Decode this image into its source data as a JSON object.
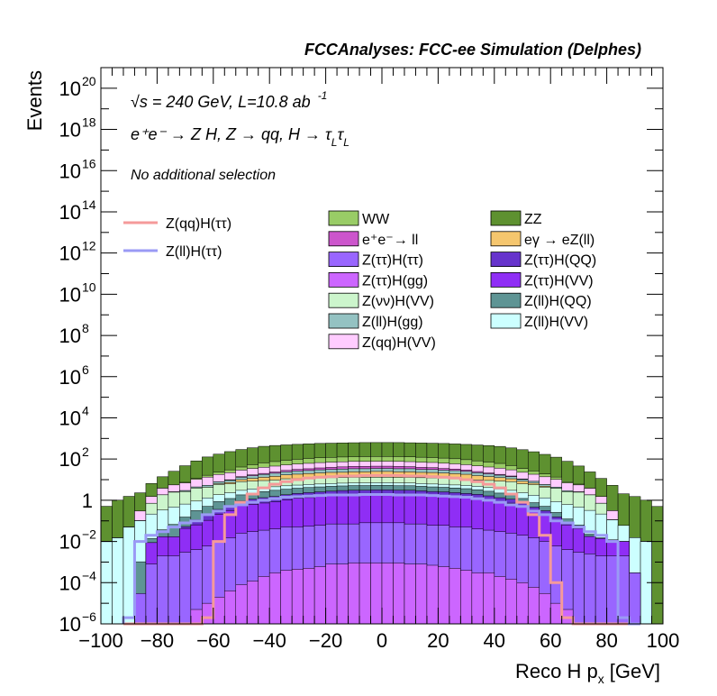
{
  "chart_data": {
    "type": "histogram",
    "title": "FCCAnalyses: FCC-ee Simulation (Delphes)",
    "xlabel": "Reco H p_x [GeV]",
    "xlabel_main": "Reco H p",
    "xlabel_sub": "x",
    "xlabel_unit": "[GeV]",
    "ylabel": "Events",
    "ylog": true,
    "xlim": [
      -100,
      100
    ],
    "ylim": [
      1e-06,
      1e+21
    ],
    "x_ticks": [
      "−100",
      "−80",
      "−60",
      "−40",
      "−20",
      "0",
      "20",
      "40",
      "60",
      "80",
      "100"
    ],
    "y_ticks": [
      {
        "exp": -6,
        "label": "10",
        "sup": "−6"
      },
      {
        "exp": -4,
        "label": "10",
        "sup": "−4"
      },
      {
        "exp": -2,
        "label": "10",
        "sup": "−2"
      },
      {
        "exp": 0,
        "label": "1",
        "sup": ""
      },
      {
        "exp": 2,
        "label": "10",
        "sup": "2"
      },
      {
        "exp": 4,
        "label": "10",
        "sup": "4"
      },
      {
        "exp": 6,
        "label": "10",
        "sup": "6"
      },
      {
        "exp": 8,
        "label": "10",
        "sup": "8"
      },
      {
        "exp": 10,
        "label": "10",
        "sup": "10"
      },
      {
        "exp": 12,
        "label": "10",
        "sup": "12"
      },
      {
        "exp": 14,
        "label": "10",
        "sup": "14"
      },
      {
        "exp": 16,
        "label": "10",
        "sup": "16"
      },
      {
        "exp": 18,
        "label": "10",
        "sup": "18"
      },
      {
        "exp": 20,
        "label": "10",
        "sup": "20"
      }
    ],
    "annotations": {
      "energy": "√s = 240 GeV, L=10.8 ab",
      "energy_sup": "-1",
      "process": "e⁺e⁻ → Z H, Z → qq, H → τ",
      "process_tau2": "τ",
      "process_sub": "L",
      "selection": "No additional selection"
    },
    "signal_legend": [
      {
        "name": "Z(qq)H(ττ)",
        "color": "#f59a9a"
      },
      {
        "name": "Z(ll)H(ττ)",
        "color": "#9a9af5"
      }
    ],
    "legend": [
      {
        "name": "WW",
        "color": "#99cc66"
      },
      {
        "name": "ZZ",
        "color": "#5e9130"
      },
      {
        "name": "e⁺e⁻→ ll",
        "color": "#cc55cc"
      },
      {
        "name": "eγ → eZ(ll)",
        "color": "#f5c66e"
      },
      {
        "name": "Z(ττ)H(ττ)",
        "color": "#9966ff"
      },
      {
        "name": "Z(ττ)H(QQ)",
        "color": "#6633cc"
      },
      {
        "name": "Z(ττ)H(gg)",
        "color": "#cc66ff"
      },
      {
        "name": "Z(ττ)H(VV)",
        "color": "#8f2ef5"
      },
      {
        "name": "Z(νν)H(VV)",
        "color": "#ccf5cc"
      },
      {
        "name": "Z(ll)H(QQ)",
        "color": "#5e9494"
      },
      {
        "name": "Z(ll)H(gg)",
        "color": "#94c2c2"
      },
      {
        "name": "Z(ll)H(VV)",
        "color": "#ccffff"
      },
      {
        "name": "Z(qq)H(VV)",
        "color": "#ffccff"
      }
    ],
    "stack_bins_x_lo": [
      -100,
      -96,
      -92,
      -88,
      -84,
      -80,
      -76,
      -72,
      -68,
      -64,
      -60,
      -56,
      -52,
      -48,
      -44,
      -40,
      -36,
      -32,
      -28,
      -24,
      -20,
      -16,
      -12,
      -8,
      -4,
      0,
      4,
      8,
      12,
      16,
      20,
      24,
      28,
      32,
      36,
      40,
      44,
      48,
      52,
      56,
      60,
      64,
      68,
      72,
      76,
      80,
      84,
      88,
      92,
      96
    ],
    "stack_bin_width": 4,
    "stack_series": [
      {
        "name": "Z(ττ)H(gg)",
        "color": "#cc66ff",
        "values": [
          0,
          0,
          0,
          0,
          0,
          0,
          0,
          0,
          5e-06,
          1e-05,
          2e-05,
          4e-05,
          8e-05,
          0.00012,
          0.0002,
          0.0003,
          0.0004,
          0.00045,
          0.0005,
          0.0006,
          0.0008,
          0.0008,
          0.0009,
          0.0009,
          0.0009,
          0.0009,
          0.0009,
          0.0008,
          0.0008,
          0.0007,
          0.0006,
          0.0005,
          0.0004,
          0.0003,
          0.0003,
          0.0002,
          0.00015,
          0.0001,
          6e-05,
          3e-05,
          1e-05,
          5e-06,
          0,
          0,
          0,
          0,
          0,
          0,
          0,
          0
        ]
      },
      {
        "name": "Z(ττ)H(ττ)",
        "color": "#9966ff",
        "values": [
          0,
          0,
          0,
          3e-05,
          0.0008,
          0.002,
          0.002,
          0.003,
          0.004,
          0.006,
          0.01,
          0.015,
          0.025,
          0.03,
          0.035,
          0.04,
          0.05,
          0.05,
          0.055,
          0.06,
          0.07,
          0.07,
          0.07,
          0.08,
          0.08,
          0.08,
          0.08,
          0.07,
          0.07,
          0.06,
          0.06,
          0.05,
          0.05,
          0.04,
          0.035,
          0.03,
          0.025,
          0.02,
          0.015,
          0.01,
          0.006,
          0.004,
          0.003,
          0.0025,
          0.002,
          0.002,
          0.002,
          0.0003,
          0,
          0
        ]
      },
      {
        "name": "Z(ττ)H(VV)",
        "color": "#8f2ef5",
        "values": [
          0,
          0,
          0,
          0,
          0.008,
          0.015,
          0.015,
          0.04,
          0.06,
          0.1,
          0.2,
          0.3,
          0.5,
          0.6,
          0.7,
          0.8,
          1.0,
          1.2,
          1.3,
          1.5,
          1.6,
          1.7,
          1.8,
          1.8,
          1.9,
          1.9,
          1.8,
          1.8,
          1.7,
          1.6,
          1.5,
          1.4,
          1.3,
          1.2,
          1.0,
          0.8,
          0.7,
          0.5,
          0.3,
          0.2,
          0.1,
          0.06,
          0.04,
          0.015,
          0.012,
          0.01,
          0.008,
          0,
          0,
          0
        ]
      },
      {
        "name": "Z(ττ)H(QQ)",
        "color": "#6633cc",
        "values": [
          0,
          0,
          0,
          0,
          0,
          0,
          0,
          0.01,
          0.05,
          0.1,
          0.15,
          0.2,
          0.4,
          0.5,
          0.6,
          0.7,
          0.8,
          0.9,
          1.0,
          1.0,
          1.1,
          1.2,
          1.2,
          1.2,
          1.2,
          1.2,
          1.2,
          1.2,
          1.1,
          1.0,
          1.0,
          0.9,
          0.8,
          0.7,
          0.6,
          0.5,
          0.4,
          0.2,
          0.15,
          0.1,
          0.05,
          0.01,
          0,
          0,
          0,
          0,
          0,
          0,
          0,
          0
        ]
      },
      {
        "name": "Z(ll)H(QQ)",
        "color": "#5e9494",
        "values": [
          0,
          0,
          0,
          0.001,
          0.005,
          0.02,
          0.05,
          0.1,
          0.2,
          0.3,
          0.5,
          0.7,
          0.9,
          1.1,
          1.3,
          1.5,
          1.6,
          1.7,
          1.8,
          1.9,
          2.0,
          2.0,
          2.1,
          2.1,
          2.1,
          2.1,
          2.0,
          2.0,
          1.9,
          1.8,
          1.7,
          1.6,
          1.5,
          1.3,
          1.1,
          0.9,
          0.7,
          0.5,
          0.3,
          0.2,
          0.1,
          0.05,
          0.02,
          0.005,
          0.001,
          0,
          0,
          0,
          0,
          0
        ]
      },
      {
        "name": "Z(ll)H(VV)",
        "color": "#ccffff",
        "values": [
          0.01,
          0.015,
          0.05,
          0.1,
          0.2,
          0.3,
          0.4,
          0.5,
          0.6,
          0.8,
          1.0,
          1.1,
          1.2,
          1.3,
          1.4,
          1.5,
          1.6,
          1.6,
          1.7,
          1.7,
          1.7,
          1.8,
          1.8,
          1.8,
          1.8,
          1.8,
          1.8,
          1.8,
          1.7,
          1.7,
          1.7,
          1.6,
          1.6,
          1.5,
          1.4,
          1.3,
          1.2,
          1.1,
          1.0,
          0.8,
          0.6,
          0.5,
          0.4,
          0.3,
          0.2,
          0.1,
          0.05,
          0.015,
          0.01,
          0
        ]
      },
      {
        "name": "Z(νν)H(VV)",
        "color": "#ccf5cc",
        "values": [
          0,
          0,
          0,
          0,
          0.5,
          1.5,
          2,
          2,
          3,
          3,
          4,
          4,
          5,
          5,
          5,
          5,
          6,
          6,
          6,
          6,
          6,
          6,
          6,
          6,
          6,
          6,
          6,
          6,
          6,
          6,
          6,
          6,
          6,
          5,
          5,
          5,
          5,
          4,
          4,
          3,
          3,
          2,
          2,
          1.5,
          0.5,
          0,
          0,
          0,
          0,
          0
        ]
      },
      {
        "name": "eγ → eZ(ll)",
        "color": "#f5c66e",
        "values": [
          0,
          0,
          0,
          0,
          0,
          0,
          0,
          0,
          0,
          0,
          0.5,
          1,
          2,
          3,
          4,
          5,
          6,
          7,
          8,
          9,
          10,
          10,
          11,
          11,
          12,
          12,
          11,
          11,
          10,
          10,
          9,
          8,
          7,
          6,
          5,
          4,
          3,
          2,
          1,
          0.5,
          0,
          0,
          0,
          0,
          0,
          0,
          0,
          0,
          0,
          0
        ]
      },
      {
        "name": "Z(ll)H(gg)",
        "color": "#94c2c2",
        "values": [
          0,
          0,
          0,
          0,
          0,
          0,
          0.1,
          0.3,
          0.5,
          1,
          1.5,
          2,
          3,
          4,
          5,
          6,
          7,
          8,
          8,
          9,
          9,
          10,
          10,
          10,
          10,
          10,
          10,
          10,
          9,
          9,
          8,
          8,
          7,
          6,
          5,
          4,
          3,
          2,
          1.5,
          1,
          0.5,
          0.3,
          0.1,
          0,
          0,
          0,
          0,
          0,
          0,
          0
        ]
      },
      {
        "name": "e⁺e⁻→ ll",
        "color": "#cc55cc",
        "values": [
          0,
          0,
          0,
          0,
          0,
          0,
          0,
          0,
          0,
          0,
          0,
          0.5,
          1,
          1.5,
          2,
          3,
          4,
          5,
          6,
          7,
          8,
          9,
          10,
          10,
          10,
          10,
          10,
          9,
          8,
          7,
          6,
          5,
          4,
          3,
          2,
          1.5,
          1,
          0.5,
          0,
          0,
          0,
          0,
          0,
          0,
          0,
          0,
          0,
          0,
          0,
          0
        ]
      },
      {
        "name": "Z(qq)H(VV)",
        "color": "#ffccff",
        "values": [
          0,
          0,
          0,
          0.2,
          0.8,
          2,
          3,
          4,
          6,
          8,
          10,
          12,
          15,
          18,
          20,
          22,
          24,
          26,
          28,
          30,
          31,
          32,
          33,
          33,
          33,
          33,
          33,
          32,
          31,
          30,
          28,
          26,
          24,
          22,
          20,
          18,
          15,
          12,
          10,
          8,
          6,
          4,
          3,
          2,
          0.8,
          0.2,
          0,
          0,
          0,
          0
        ]
      },
      {
        "name": "WW",
        "color": "#99cc66",
        "values": [
          0,
          0,
          0,
          0,
          0,
          0,
          0,
          0.5,
          1,
          3,
          5,
          8,
          12,
          18,
          25,
          30,
          35,
          40,
          45,
          48,
          50,
          52,
          53,
          54,
          55,
          55,
          54,
          53,
          52,
          50,
          48,
          45,
          40,
          35,
          30,
          25,
          18,
          12,
          8,
          5,
          3,
          1,
          0.5,
          0,
          0,
          0,
          0,
          0,
          0,
          0
        ]
      },
      {
        "name": "ZZ",
        "color": "#5e9130",
        "values": [
          0.5,
          1,
          1.5,
          2,
          5,
          10,
          20,
          40,
          70,
          110,
          150,
          200,
          250,
          300,
          350,
          380,
          400,
          420,
          440,
          460,
          470,
          480,
          490,
          500,
          500,
          500,
          500,
          490,
          480,
          470,
          460,
          440,
          420,
          400,
          380,
          350,
          300,
          250,
          200,
          150,
          110,
          70,
          40,
          20,
          10,
          5,
          2,
          1.5,
          1,
          0.5
        ]
      }
    ],
    "signal_bins_x_lo": [
      -92,
      -88,
      -84,
      -80,
      -76,
      -72,
      -68,
      -64,
      -60,
      -56,
      -52,
      -48,
      -44,
      -40,
      -36,
      -32,
      -28,
      -24,
      -20,
      -16,
      -12,
      -8,
      -4,
      0,
      4,
      8,
      12,
      16,
      20,
      24,
      28,
      32,
      36,
      40,
      44,
      48,
      52,
      56,
      60,
      64,
      68,
      72,
      76,
      80,
      84,
      88
    ],
    "signal_series": [
      {
        "name": "Z(qq)H(ττ)",
        "color": "#f59a9a",
        "values": [
          0,
          0,
          0,
          0,
          0,
          0,
          0,
          2e-06,
          0.01,
          0.2,
          0.8,
          2,
          4,
          6,
          8,
          10,
          12,
          13,
          14,
          15,
          15,
          16,
          16,
          16,
          16,
          15,
          15,
          14,
          13,
          12,
          10,
          8,
          6,
          4,
          2,
          0.8,
          0.2,
          0.02,
          0.0001,
          2e-06,
          0,
          0,
          0,
          0,
          0,
          0
        ]
      },
      {
        "name": "Z(ll)H(ττ)",
        "color": "#9a9af5",
        "values": [
          2e-06,
          0.01,
          0.02,
          0.03,
          0.05,
          0.08,
          0.1,
          0.2,
          0.3,
          0.5,
          0.6,
          0.8,
          1,
          1.2,
          1.4,
          1.5,
          1.6,
          1.7,
          1.8,
          1.8,
          1.8,
          1.9,
          1.9,
          1.9,
          1.8,
          1.8,
          1.8,
          1.7,
          1.6,
          1.5,
          1.4,
          1.2,
          1,
          0.8,
          0.6,
          0.5,
          0.3,
          0.2,
          0.1,
          0.08,
          0.05,
          0.03,
          0.02,
          0.01,
          2e-06,
          0
        ]
      }
    ]
  }
}
